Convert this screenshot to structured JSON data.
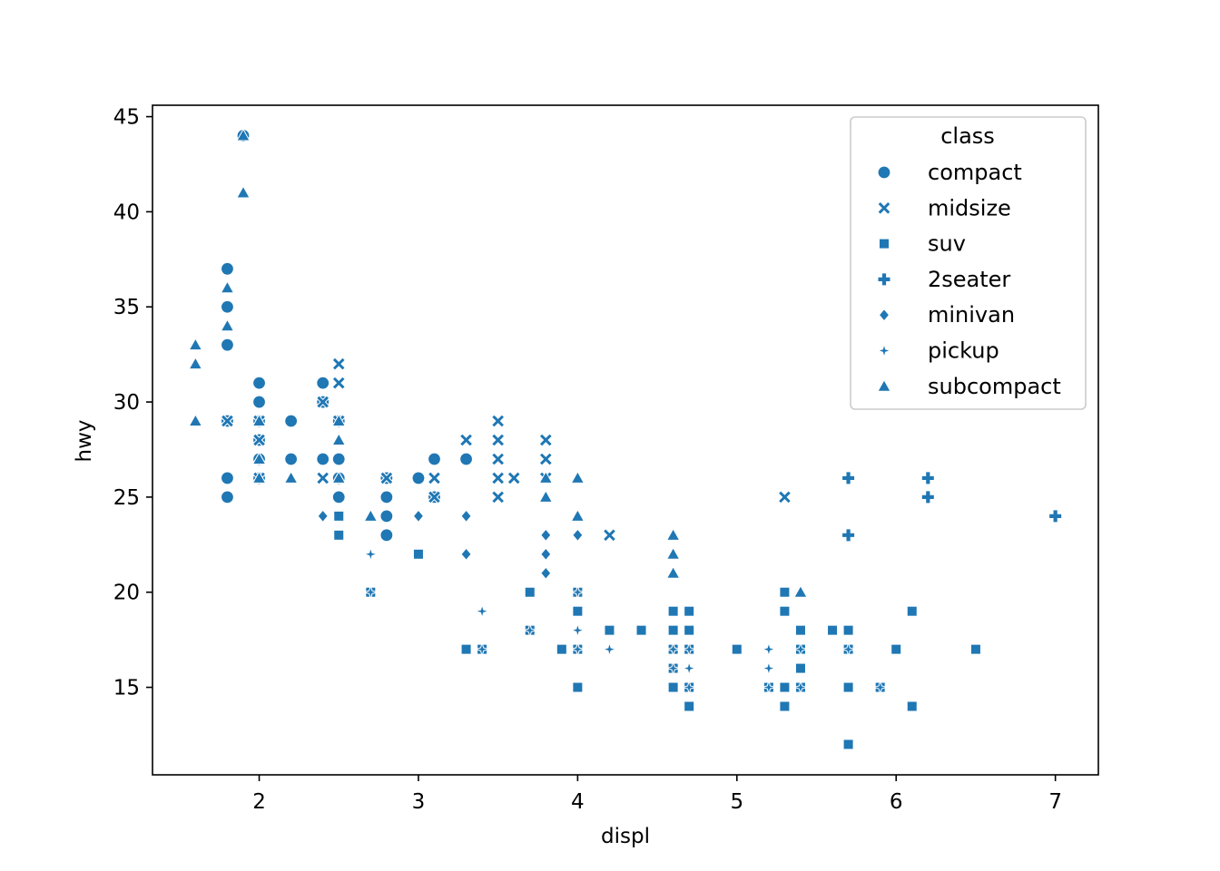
{
  "chart_data": {
    "type": "scatter",
    "xlabel": "displ",
    "ylabel": "hwy",
    "xlim": [
      1.33,
      7.27
    ],
    "ylim": [
      10.4,
      45.6
    ],
    "xticks": [
      2,
      3,
      4,
      5,
      6,
      7
    ],
    "yticks": [
      15,
      20,
      25,
      30,
      35,
      40,
      45
    ],
    "grid": false,
    "legend": {
      "title": "class",
      "placement": "top-right"
    },
    "marker_color": "#1f77b4",
    "series": [
      {
        "name": "compact",
        "marker": "circle",
        "points": [
          [
            1.8,
            29
          ],
          [
            1.8,
            29
          ],
          [
            2.0,
            31
          ],
          [
            2.0,
            30
          ],
          [
            2.8,
            26
          ],
          [
            2.8,
            26
          ],
          [
            3.1,
            27
          ],
          [
            1.8,
            26
          ],
          [
            1.8,
            25
          ],
          [
            2.0,
            28
          ],
          [
            2.0,
            27
          ],
          [
            2.8,
            25
          ],
          [
            2.8,
            25
          ],
          [
            3.1,
            25
          ],
          [
            2.2,
            27
          ],
          [
            2.2,
            29
          ],
          [
            2.4,
            31
          ],
          [
            2.4,
            31
          ],
          [
            3.0,
            26
          ],
          [
            3.0,
            26
          ],
          [
            3.3,
            27
          ],
          [
            1.8,
            35
          ],
          [
            1.8,
            37
          ],
          [
            1.8,
            35
          ],
          [
            1.8,
            29
          ],
          [
            1.8,
            33
          ],
          [
            1.9,
            44
          ],
          [
            2.0,
            29
          ],
          [
            2.0,
            26
          ],
          [
            2.0,
            29
          ],
          [
            2.0,
            29
          ],
          [
            2.5,
            29
          ],
          [
            2.5,
            29
          ],
          [
            2.8,
            23
          ],
          [
            2.8,
            24
          ],
          [
            2.4,
            27
          ],
          [
            2.4,
            30
          ],
          [
            2.5,
            29
          ],
          [
            2.5,
            29
          ],
          [
            2.5,
            25
          ],
          [
            2.5,
            27
          ],
          [
            2.5,
            26
          ]
        ]
      },
      {
        "name": "midsize",
        "marker": "x",
        "points": [
          [
            2.8,
            26
          ],
          [
            3.1,
            25
          ],
          [
            4.2,
            23
          ],
          [
            5.3,
            25
          ],
          [
            2.4,
            26
          ],
          [
            2.4,
            30
          ],
          [
            3.1,
            26
          ],
          [
            3.5,
            29
          ],
          [
            3.6,
            26
          ],
          [
            1.8,
            29
          ],
          [
            1.8,
            29
          ],
          [
            2.0,
            28
          ],
          [
            2.0,
            29
          ],
          [
            2.8,
            26
          ],
          [
            3.5,
            25
          ],
          [
            2.5,
            29
          ],
          [
            2.5,
            31
          ],
          [
            2.5,
            32
          ],
          [
            2.5,
            29
          ],
          [
            3.3,
            28
          ],
          [
            3.5,
            27
          ],
          [
            3.5,
            26
          ],
          [
            3.5,
            28
          ],
          [
            2.0,
            29
          ],
          [
            2.0,
            28
          ],
          [
            2.0,
            26
          ],
          [
            2.8,
            26
          ],
          [
            2.8,
            26
          ],
          [
            3.8,
            26
          ],
          [
            3.8,
            28
          ],
          [
            3.8,
            27
          ]
        ]
      },
      {
        "name": "suv",
        "marker": "square",
        "points": [
          [
            5.3,
            20
          ],
          [
            5.3,
            15
          ],
          [
            5.3,
            20
          ],
          [
            5.7,
            17
          ],
          [
            6.0,
            17
          ],
          [
            5.7,
            15
          ],
          [
            6.5,
            17
          ],
          [
            5.7,
            17
          ],
          [
            4.0,
            19
          ],
          [
            4.0,
            20
          ],
          [
            4.6,
            17
          ],
          [
            5.0,
            17
          ],
          [
            4.0,
            17
          ],
          [
            4.0,
            17
          ],
          [
            4.0,
            19
          ],
          [
            4.6,
            19
          ],
          [
            5.0,
            17
          ],
          [
            3.7,
            18
          ],
          [
            3.7,
            18
          ],
          [
            3.9,
            17
          ],
          [
            3.9,
            17
          ],
          [
            4.7,
            17
          ],
          [
            4.7,
            17
          ],
          [
            4.7,
            15
          ],
          [
            5.2,
            15
          ],
          [
            5.7,
            18
          ],
          [
            5.9,
            15
          ],
          [
            4.6,
            18
          ],
          [
            5.4,
            18
          ],
          [
            5.4,
            17
          ],
          [
            4.0,
            15
          ],
          [
            4.0,
            17
          ],
          [
            4.6,
            17
          ],
          [
            5.0,
            17
          ],
          [
            3.3,
            17
          ],
          [
            3.3,
            17
          ],
          [
            4.0,
            17
          ],
          [
            4.7,
            17
          ],
          [
            4.7,
            14
          ],
          [
            5.7,
            12
          ],
          [
            6.1,
            19
          ],
          [
            3.0,
            22
          ],
          [
            3.7,
            20
          ],
          [
            4.0,
            20
          ],
          [
            4.7,
            19
          ],
          [
            4.7,
            18
          ],
          [
            4.7,
            19
          ],
          [
            5.7,
            15
          ],
          [
            6.1,
            14
          ],
          [
            4.2,
            18
          ],
          [
            4.4,
            18
          ],
          [
            4.6,
            16
          ],
          [
            5.4,
            15
          ],
          [
            4.6,
            19
          ],
          [
            2.5,
            23
          ],
          [
            2.5,
            24
          ],
          [
            2.5,
            23
          ],
          [
            2.7,
            20
          ],
          [
            3.4,
            17
          ],
          [
            3.4,
            17
          ],
          [
            4.0,
            17
          ],
          [
            4.7,
            15
          ],
          [
            5.3,
            14
          ],
          [
            5.6,
            18
          ],
          [
            4.0,
            19
          ],
          [
            4.0,
            20
          ],
          [
            4.6,
            15
          ],
          [
            5.0,
            17
          ],
          [
            5.4,
            16
          ],
          [
            5.3,
            19
          ]
        ]
      },
      {
        "name": "2seater",
        "marker": "plus",
        "points": [
          [
            5.7,
            26
          ],
          [
            5.7,
            23
          ],
          [
            6.2,
            26
          ],
          [
            6.2,
            25
          ],
          [
            7.0,
            24
          ]
        ]
      },
      {
        "name": "minivan",
        "marker": "diamond",
        "points": [
          [
            2.4,
            24
          ],
          [
            3.0,
            24
          ],
          [
            3.3,
            22
          ],
          [
            3.3,
            24
          ],
          [
            3.3,
            24
          ],
          [
            3.3,
            24
          ],
          [
            3.3,
            24
          ],
          [
            3.8,
            22
          ],
          [
            3.8,
            21
          ],
          [
            3.8,
            23
          ],
          [
            4.0,
            23
          ],
          [
            4.0,
            23
          ]
        ]
      },
      {
        "name": "pickup",
        "marker": "star",
        "points": [
          [
            3.7,
            18
          ],
          [
            4.7,
            17
          ],
          [
            4.7,
            16
          ],
          [
            5.2,
            17
          ],
          [
            5.2,
            15
          ],
          [
            5.7,
            17
          ],
          [
            5.9,
            15
          ],
          [
            4.7,
            16
          ],
          [
            4.7,
            15
          ],
          [
            4.6,
            17
          ],
          [
            5.4,
            17
          ],
          [
            5.4,
            15
          ],
          [
            4.0,
            17
          ],
          [
            4.0,
            18
          ],
          [
            4.0,
            20
          ],
          [
            4.6,
            17
          ],
          [
            5.2,
            16
          ],
          [
            5.2,
            17
          ],
          [
            2.7,
            20
          ],
          [
            2.7,
            22
          ],
          [
            3.4,
            17
          ],
          [
            3.4,
            19
          ],
          [
            4.0,
            17
          ],
          [
            4.0,
            18
          ],
          [
            4.2,
            17
          ],
          [
            4.6,
            16
          ],
          [
            5.2,
            16
          ],
          [
            5.2,
            15
          ],
          [
            2.7,
            20
          ],
          [
            3.4,
            19
          ],
          [
            3.4,
            19
          ],
          [
            4.0,
            17
          ],
          [
            4.0,
            20
          ]
        ]
      },
      {
        "name": "subcompact",
        "marker": "triangle",
        "points": [
          [
            3.8,
            26
          ],
          [
            3.8,
            25
          ],
          [
            4.0,
            26
          ],
          [
            4.0,
            24
          ],
          [
            4.6,
            21
          ],
          [
            4.6,
            22
          ],
          [
            4.6,
            23
          ],
          [
            5.4,
            20
          ],
          [
            1.6,
            33
          ],
          [
            1.6,
            32
          ],
          [
            1.6,
            32
          ],
          [
            1.6,
            29
          ],
          [
            1.6,
            32
          ],
          [
            1.8,
            34
          ],
          [
            1.8,
            36
          ],
          [
            1.8,
            36
          ],
          [
            2.0,
            29
          ],
          [
            2.0,
            26
          ],
          [
            2.0,
            27
          ],
          [
            2.0,
            26
          ],
          [
            2.0,
            27
          ],
          [
            2.7,
            24
          ],
          [
            2.7,
            24
          ],
          [
            2.7,
            24
          ],
          [
            1.9,
            44
          ],
          [
            1.9,
            41
          ],
          [
            2.5,
            26
          ],
          [
            2.5,
            28
          ],
          [
            2.5,
            29
          ],
          [
            2.2,
            26
          ],
          [
            2.2,
            26
          ],
          [
            2.5,
            26
          ]
        ]
      }
    ]
  }
}
